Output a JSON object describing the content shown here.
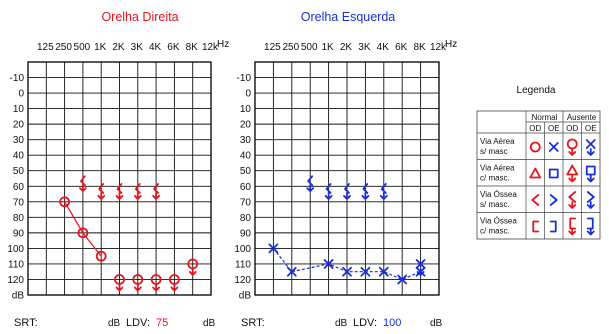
{
  "chart_data": [
    {
      "type": "line",
      "title": "Orelha Direita",
      "title_color": "#e8141c",
      "x_ticks": [
        "125",
        "250",
        "500",
        "1K",
        "2K",
        "3K",
        "4K",
        "6K",
        "8K",
        "12k"
      ],
      "x_unit": "Hz",
      "y_ticks": [
        "-10",
        "0",
        "10",
        "20",
        "30",
        "40",
        "50",
        "60",
        "70",
        "80",
        "90",
        "100",
        "110",
        "120"
      ],
      "y_unit": "dB",
      "ylim": [
        -10,
        120
      ],
      "series": [
        {
          "symbol": "air-circle",
          "connected": true,
          "color": "#e8141c",
          "points": [
            [
              "250",
              70
            ],
            [
              "500",
              90
            ],
            [
              "1K",
              105
            ]
          ]
        },
        {
          "symbol": "air-circle-absent",
          "connected": false,
          "color": "#e8141c",
          "points": [
            [
              "2K",
              120
            ],
            [
              "3K",
              120
            ],
            [
              "4K",
              120
            ],
            [
              "6K",
              120
            ],
            [
              "8K",
              110
            ]
          ]
        },
        {
          "symbol": "bone-absent",
          "connected": false,
          "color": "#e8141c",
          "points": [
            [
              "500",
              58
            ],
            [
              "1K",
              63
            ],
            [
              "2K",
              63
            ],
            [
              "3K",
              63
            ],
            [
              "4K",
              63
            ]
          ]
        }
      ],
      "srt_label": "SRT:",
      "srt_value": "",
      "srt_unit": "dB",
      "ldv_label": "LDV:",
      "ldv_value": "75",
      "ldv_unit": "dB"
    },
    {
      "type": "line",
      "title": "Orelha Esquerda",
      "title_color": "#1a2fd8",
      "x_ticks": [
        "125",
        "250",
        "500",
        "1K",
        "2K",
        "3K",
        "4K",
        "6K",
        "8K",
        "12k"
      ],
      "x_unit": "Hz",
      "y_ticks": [
        "-10",
        "0",
        "10",
        "20",
        "30",
        "40",
        "50",
        "60",
        "70",
        "80",
        "90",
        "100",
        "110",
        "120"
      ],
      "y_unit": "dB",
      "ylim": [
        -10,
        120
      ],
      "series": [
        {
          "symbol": "air-x",
          "connected": true,
          "dashed": true,
          "color": "#1a2fd8",
          "points": [
            [
              "125",
              100
            ],
            [
              "250",
              115
            ],
            [
              "1K",
              110
            ],
            [
              "2K",
              115
            ],
            [
              "3K",
              115
            ],
            [
              "4K",
              115
            ],
            [
              "6K",
              120
            ],
            [
              "8K",
              115
            ]
          ]
        },
        {
          "symbol": "bone-absent",
          "connected": false,
          "color": "#1a2fd8",
          "points": [
            [
              "500",
              58
            ],
            [
              "1K",
              63
            ],
            [
              "2K",
              63
            ],
            [
              "3K",
              63
            ],
            [
              "4K",
              63
            ]
          ]
        },
        {
          "symbol": "air-x-absent",
          "connected": false,
          "color": "#1a2fd8",
          "points": [
            [
              "8K",
              110
            ]
          ]
        }
      ],
      "srt_label": "SRT:",
      "srt_value": "",
      "srt_unit": "dB",
      "ldv_label": "LDV:",
      "ldv_value": "100",
      "ldv_unit": "dB"
    }
  ],
  "legend": {
    "title": "Legenda",
    "group_headers": [
      "Normal",
      "Ausente"
    ],
    "ear_headers": [
      "OD",
      "OE",
      "OD",
      "OE"
    ],
    "rows": [
      {
        "label": [
          "Via Aérea",
          "s/ masc"
        ],
        "symbols": [
          "air-circle",
          "air-x",
          "air-circle-absent",
          "air-x-absent"
        ]
      },
      {
        "label": [
          "Via Aérea",
          "c/ masc."
        ],
        "symbols": [
          "triangle",
          "square",
          "triangle-absent",
          "square-absent"
        ]
      },
      {
        "label": [
          "Via Óssea",
          "s/ masc."
        ],
        "symbols": [
          "bone-left",
          "bone-right",
          "bone-left-absent",
          "bone-right-absent"
        ]
      },
      {
        "label": [
          "Via Óssea",
          "c/ masc."
        ],
        "symbols": [
          "bracket-left",
          "bracket-right",
          "bracket-left-absent",
          "bracket-right-absent"
        ]
      }
    ],
    "colors": {
      "od": "#e8141c",
      "oe": "#1a2fd8"
    }
  }
}
